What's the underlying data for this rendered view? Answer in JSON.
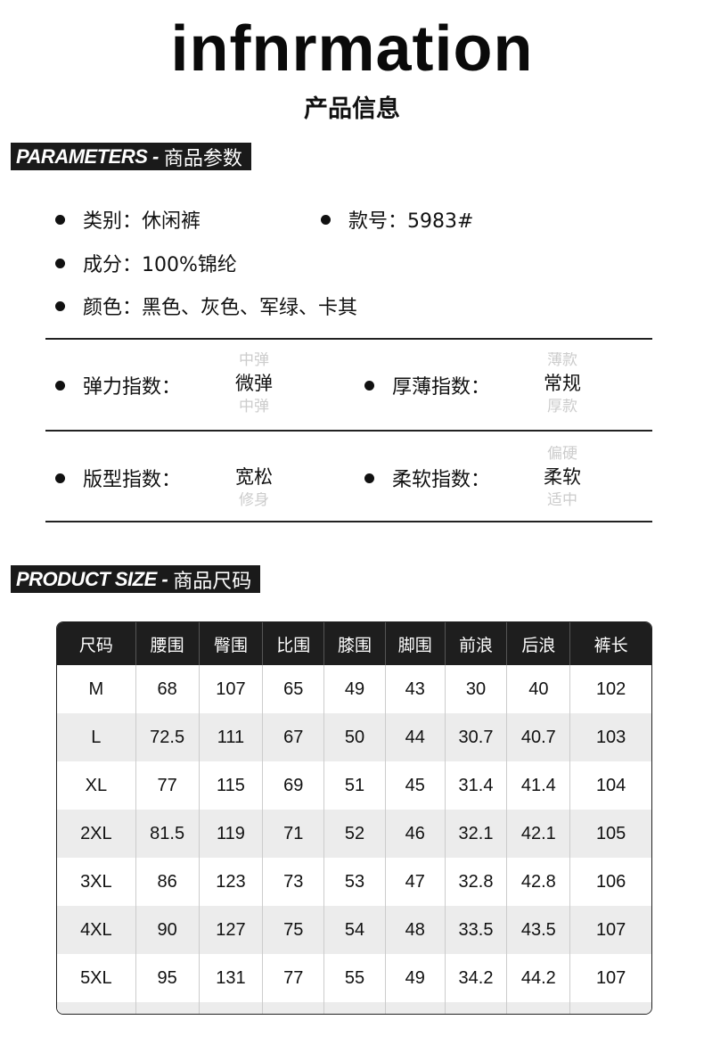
{
  "header": {
    "title": "infnrmation",
    "subtitle": "产品信息"
  },
  "params_banner": {
    "en": "PARAMETERS -",
    "cn": "商品参数"
  },
  "params": {
    "category": "类别：休闲裤",
    "style_no": "款号：5983#",
    "material": "成分：100%锦纶",
    "colors": "颜色：黑色、灰色、军绿、卡其"
  },
  "indices": [
    {
      "label": "弹力指数：",
      "above": "中弹",
      "value": "微弹",
      "below": "中弹"
    },
    {
      "label": "厚薄指数：",
      "above": "薄款",
      "value": "常规",
      "below": "厚款"
    },
    {
      "label": "版型指数：",
      "above": "",
      "value": "宽松",
      "below": "修身"
    },
    {
      "label": "柔软指数：",
      "above": "偏硬",
      "value": "柔软",
      "below": "适中"
    }
  ],
  "size_banner": {
    "en": "PRODUCT SIZE -",
    "cn": "商品尺码"
  },
  "size_table": {
    "headers": [
      "尺码",
      "腰围",
      "臀围",
      "比围",
      "膝围",
      "脚围",
      "前浪",
      "后浪",
      "裤长"
    ],
    "rows": [
      [
        "M",
        "68",
        "107",
        "65",
        "49",
        "43",
        "30",
        "40",
        "102"
      ],
      [
        "L",
        "72.5",
        "111",
        "67",
        "50",
        "44",
        "30.7",
        "40.7",
        "103"
      ],
      [
        "XL",
        "77",
        "115",
        "69",
        "51",
        "45",
        "31.4",
        "41.4",
        "104"
      ],
      [
        "2XL",
        "81.5",
        "119",
        "71",
        "52",
        "46",
        "32.1",
        "42.1",
        "105"
      ],
      [
        "3XL",
        "86",
        "123",
        "73",
        "53",
        "47",
        "32.8",
        "42.8",
        "106"
      ],
      [
        "4XL",
        "90",
        "127",
        "75",
        "54",
        "48",
        "33.5",
        "43.5",
        "107"
      ],
      [
        "5XL",
        "95",
        "131",
        "77",
        "55",
        "49",
        "34.2",
        "44.2",
        "107"
      ]
    ]
  }
}
